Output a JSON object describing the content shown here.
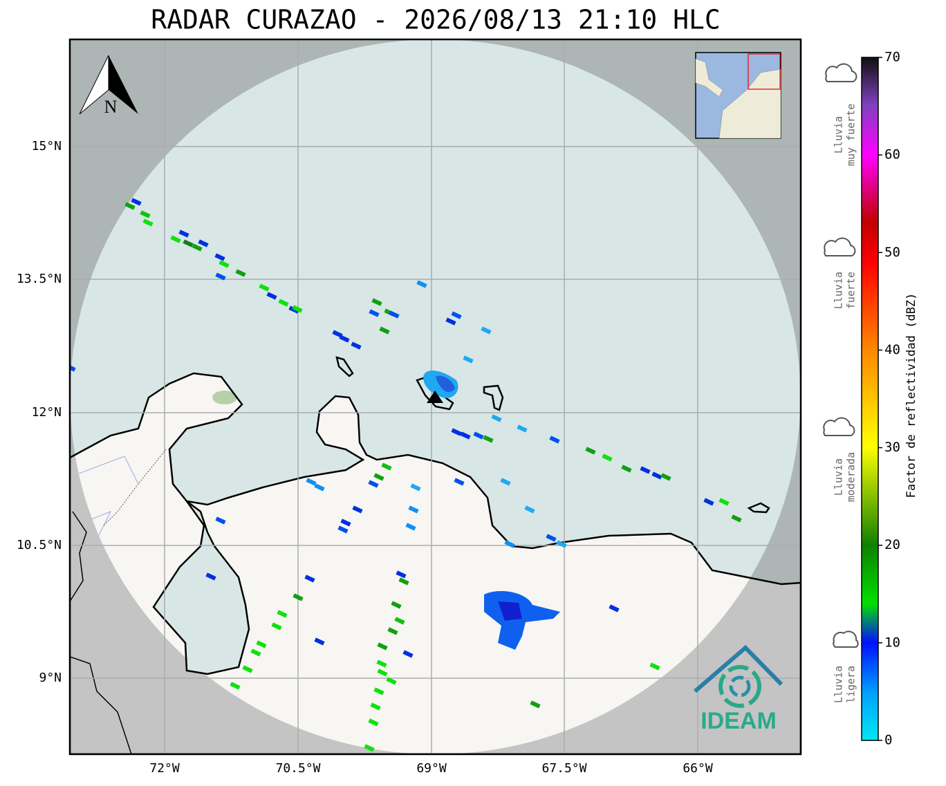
{
  "title": "RADAR CURAZAO - 2026/08/13 21:10 HLC",
  "map": {
    "lat_labels": [
      "15°N",
      "13.5°N",
      "12°N",
      "10.5°N",
      "9°N"
    ],
    "lon_labels": [
      "72°W",
      "70.5°W",
      "69°W",
      "67.5°W",
      "66°W"
    ],
    "compass": "N",
    "logo": "IDEAM"
  },
  "colorbar": {
    "label": "Factor de reflectividad (dBZ)",
    "range": [
      0,
      70
    ],
    "ticks": [
      0,
      10,
      20,
      30,
      40,
      50,
      60,
      70
    ]
  },
  "legend": [
    {
      "lines": [
        "Lluvia",
        "muy fuerte"
      ]
    },
    {
      "lines": [
        "Lluvia",
        "fuerte"
      ]
    },
    {
      "lines": [
        "Lluvia",
        "moderada"
      ]
    },
    {
      "lines": [
        "Lluvia",
        "ligera"
      ]
    }
  ]
}
